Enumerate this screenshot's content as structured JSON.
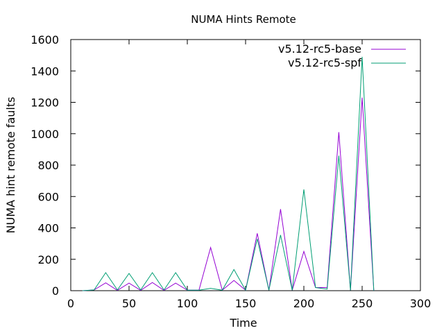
{
  "chart_data": {
    "type": "line",
    "title": "NUMA Hints Remote",
    "xlabel": "Time",
    "ylabel": "NUMA hint remote faults",
    "xlim": [
      0,
      300
    ],
    "ylim": [
      0,
      1600
    ],
    "xticks": [
      0,
      50,
      100,
      150,
      200,
      250,
      300
    ],
    "yticks": [
      0,
      200,
      400,
      600,
      800,
      1000,
      1200,
      1400,
      1600
    ],
    "grid": false,
    "legend_position": "top-right",
    "series": [
      {
        "name": "v5.12-rc5-base",
        "color": "#9400d3",
        "x": [
          10,
          20,
          30,
          40,
          50,
          60,
          70,
          80,
          90,
          100,
          110,
          120,
          130,
          140,
          150,
          160,
          170,
          180,
          190,
          200,
          210,
          220,
          230,
          240,
          250,
          260
        ],
        "y": [
          0,
          5,
          50,
          2,
          48,
          2,
          52,
          2,
          48,
          3,
          3,
          275,
          3,
          65,
          3,
          365,
          3,
          520,
          3,
          250,
          20,
          20,
          1010,
          2,
          1230,
          0
        ]
      },
      {
        "name": "v5.12-rc5-spf",
        "color": "#009e73",
        "x": [
          10,
          20,
          30,
          40,
          50,
          60,
          70,
          80,
          90,
          100,
          110,
          120,
          130,
          140,
          150,
          160,
          170,
          180,
          190,
          200,
          210,
          220,
          230,
          240,
          250,
          260
        ],
        "y": [
          0,
          5,
          115,
          5,
          110,
          5,
          115,
          5,
          115,
          3,
          3,
          15,
          3,
          135,
          3,
          330,
          3,
          355,
          3,
          645,
          20,
          10,
          860,
          2,
          1490,
          0
        ]
      }
    ]
  }
}
